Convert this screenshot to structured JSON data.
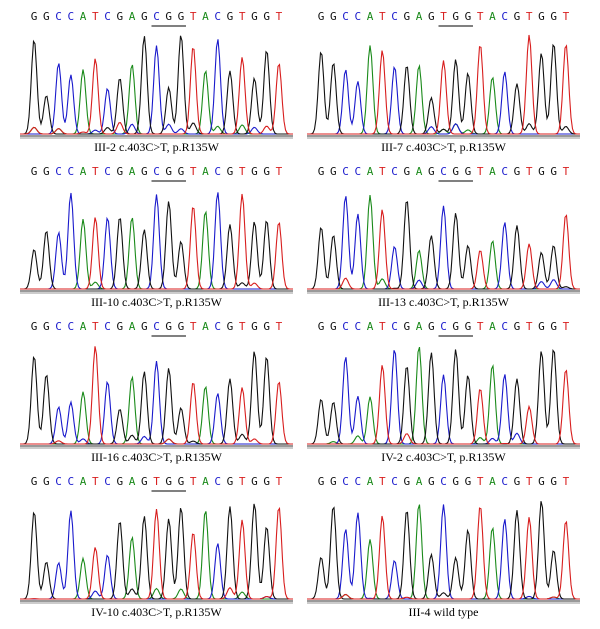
{
  "panels": [
    {
      "bases": [
        "G",
        "G",
        "C",
        "C",
        "A",
        "T",
        "C",
        "G",
        "A",
        "G",
        "C",
        "G",
        "G",
        "T",
        "A",
        "C",
        "G",
        "T",
        "G",
        "G",
        "T"
      ],
      "caption": "III-2 c.403C>T, p.R135W"
    },
    {
      "bases": [
        "G",
        "G",
        "C",
        "C",
        "A",
        "T",
        "C",
        "G",
        "A",
        "G",
        "T",
        "G",
        "G",
        "T",
        "A",
        "C",
        "G",
        "T",
        "G",
        "G",
        "T"
      ],
      "caption": "III-7 c.403C>T, p.R135W"
    },
    {
      "bases": [
        "G",
        "G",
        "C",
        "C",
        "A",
        "T",
        "C",
        "G",
        "A",
        "G",
        "C",
        "G",
        "G",
        "T",
        "A",
        "C",
        "G",
        "T",
        "G",
        "G",
        "T"
      ],
      "caption": "III-10 c.403C>T, p.R135W"
    },
    {
      "bases": [
        "G",
        "G",
        "C",
        "C",
        "A",
        "T",
        "C",
        "G",
        "A",
        "G",
        "C",
        "G",
        "G",
        "T",
        "A",
        "C",
        "G",
        "T",
        "G",
        "G",
        "T"
      ],
      "caption": "III-13 c.403C>T, p.R135W"
    },
    {
      "bases": [
        "G",
        "G",
        "C",
        "C",
        "A",
        "T",
        "C",
        "G",
        "A",
        "G",
        "C",
        "G",
        "G",
        "T",
        "A",
        "C",
        "G",
        "T",
        "G",
        "G",
        "T"
      ],
      "caption": "III-16 c.403C>T, p.R135W"
    },
    {
      "bases": [
        "G",
        "G",
        "C",
        "C",
        "A",
        "T",
        "C",
        "G",
        "A",
        "G",
        "C",
        "G",
        "G",
        "T",
        "A",
        "C",
        "G",
        "T",
        "G",
        "G",
        "T"
      ],
      "caption": "IV-2 c.403C>T, p.R135W"
    },
    {
      "bases": [
        "G",
        "G",
        "C",
        "C",
        "A",
        "T",
        "C",
        "G",
        "A",
        "G",
        "T",
        "G",
        "G",
        "T",
        "A",
        "C",
        "G",
        "T",
        "G",
        "G",
        "T"
      ],
      "caption": "IV-10 c.403C>T, p.R135W"
    },
    {
      "bases": [
        "G",
        "G",
        "C",
        "C",
        "A",
        "T",
        "C",
        "G",
        "A",
        "G",
        "C",
        "G",
        "G",
        "T",
        "A",
        "C",
        "G",
        "T",
        "G",
        "G",
        "T"
      ],
      "caption": "III-4 wild type"
    }
  ]
}
